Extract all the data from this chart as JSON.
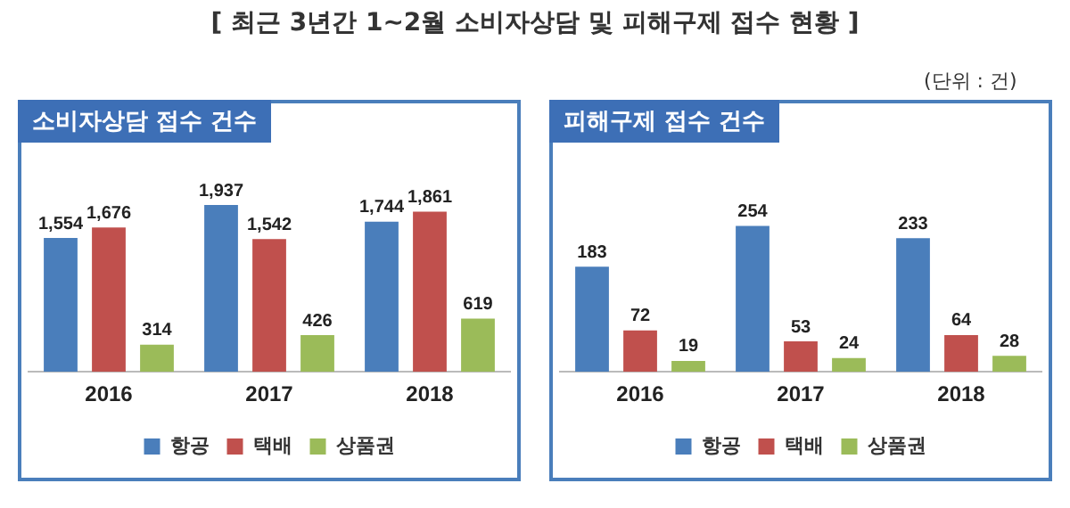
{
  "chart_data": [
    {
      "type": "bar",
      "title": "[ 최근 3년간 1~2월 소비자상담 및 피해구제 접수 현황 ]",
      "subtitle": "소비자상담 접수 건수",
      "categories": [
        "2016",
        "2017",
        "2018"
      ],
      "legend": "bottom",
      "grid": false,
      "series": [
        {
          "name": "항공",
          "color": "#4a7ebb",
          "values": [
            1554,
            1937,
            1744
          ],
          "value_labels": [
            "1,554",
            "1,937",
            "1,744"
          ]
        },
        {
          "name": "택배",
          "color": "#c0504d",
          "values": [
            1676,
            1542,
            1861
          ],
          "value_labels": [
            "1,676",
            "1,542",
            "1,861"
          ]
        },
        {
          "name": "상품권",
          "color": "#9bbb59",
          "values": [
            314,
            426,
            619
          ],
          "value_labels": [
            "314",
            "426",
            "619"
          ]
        }
      ]
    },
    {
      "type": "bar",
      "subtitle": "피해구제 접수 건수",
      "annotations": [
        "(단위 : 건)"
      ],
      "categories": [
        "2016",
        "2017",
        "2018"
      ],
      "legend": "bottom",
      "grid": false,
      "series": [
        {
          "name": "항공",
          "color": "#4a7ebb",
          "values": [
            183,
            254,
            233
          ],
          "value_labels": [
            "183",
            "254",
            "233"
          ]
        },
        {
          "name": "택배",
          "color": "#c0504d",
          "values": [
            72,
            53,
            64
          ],
          "value_labels": [
            "72",
            "53",
            "64"
          ]
        },
        {
          "name": "상품권",
          "color": "#9bbb59",
          "values": [
            19,
            24,
            28
          ],
          "value_labels": [
            "19",
            "24",
            "28"
          ]
        }
      ]
    }
  ]
}
